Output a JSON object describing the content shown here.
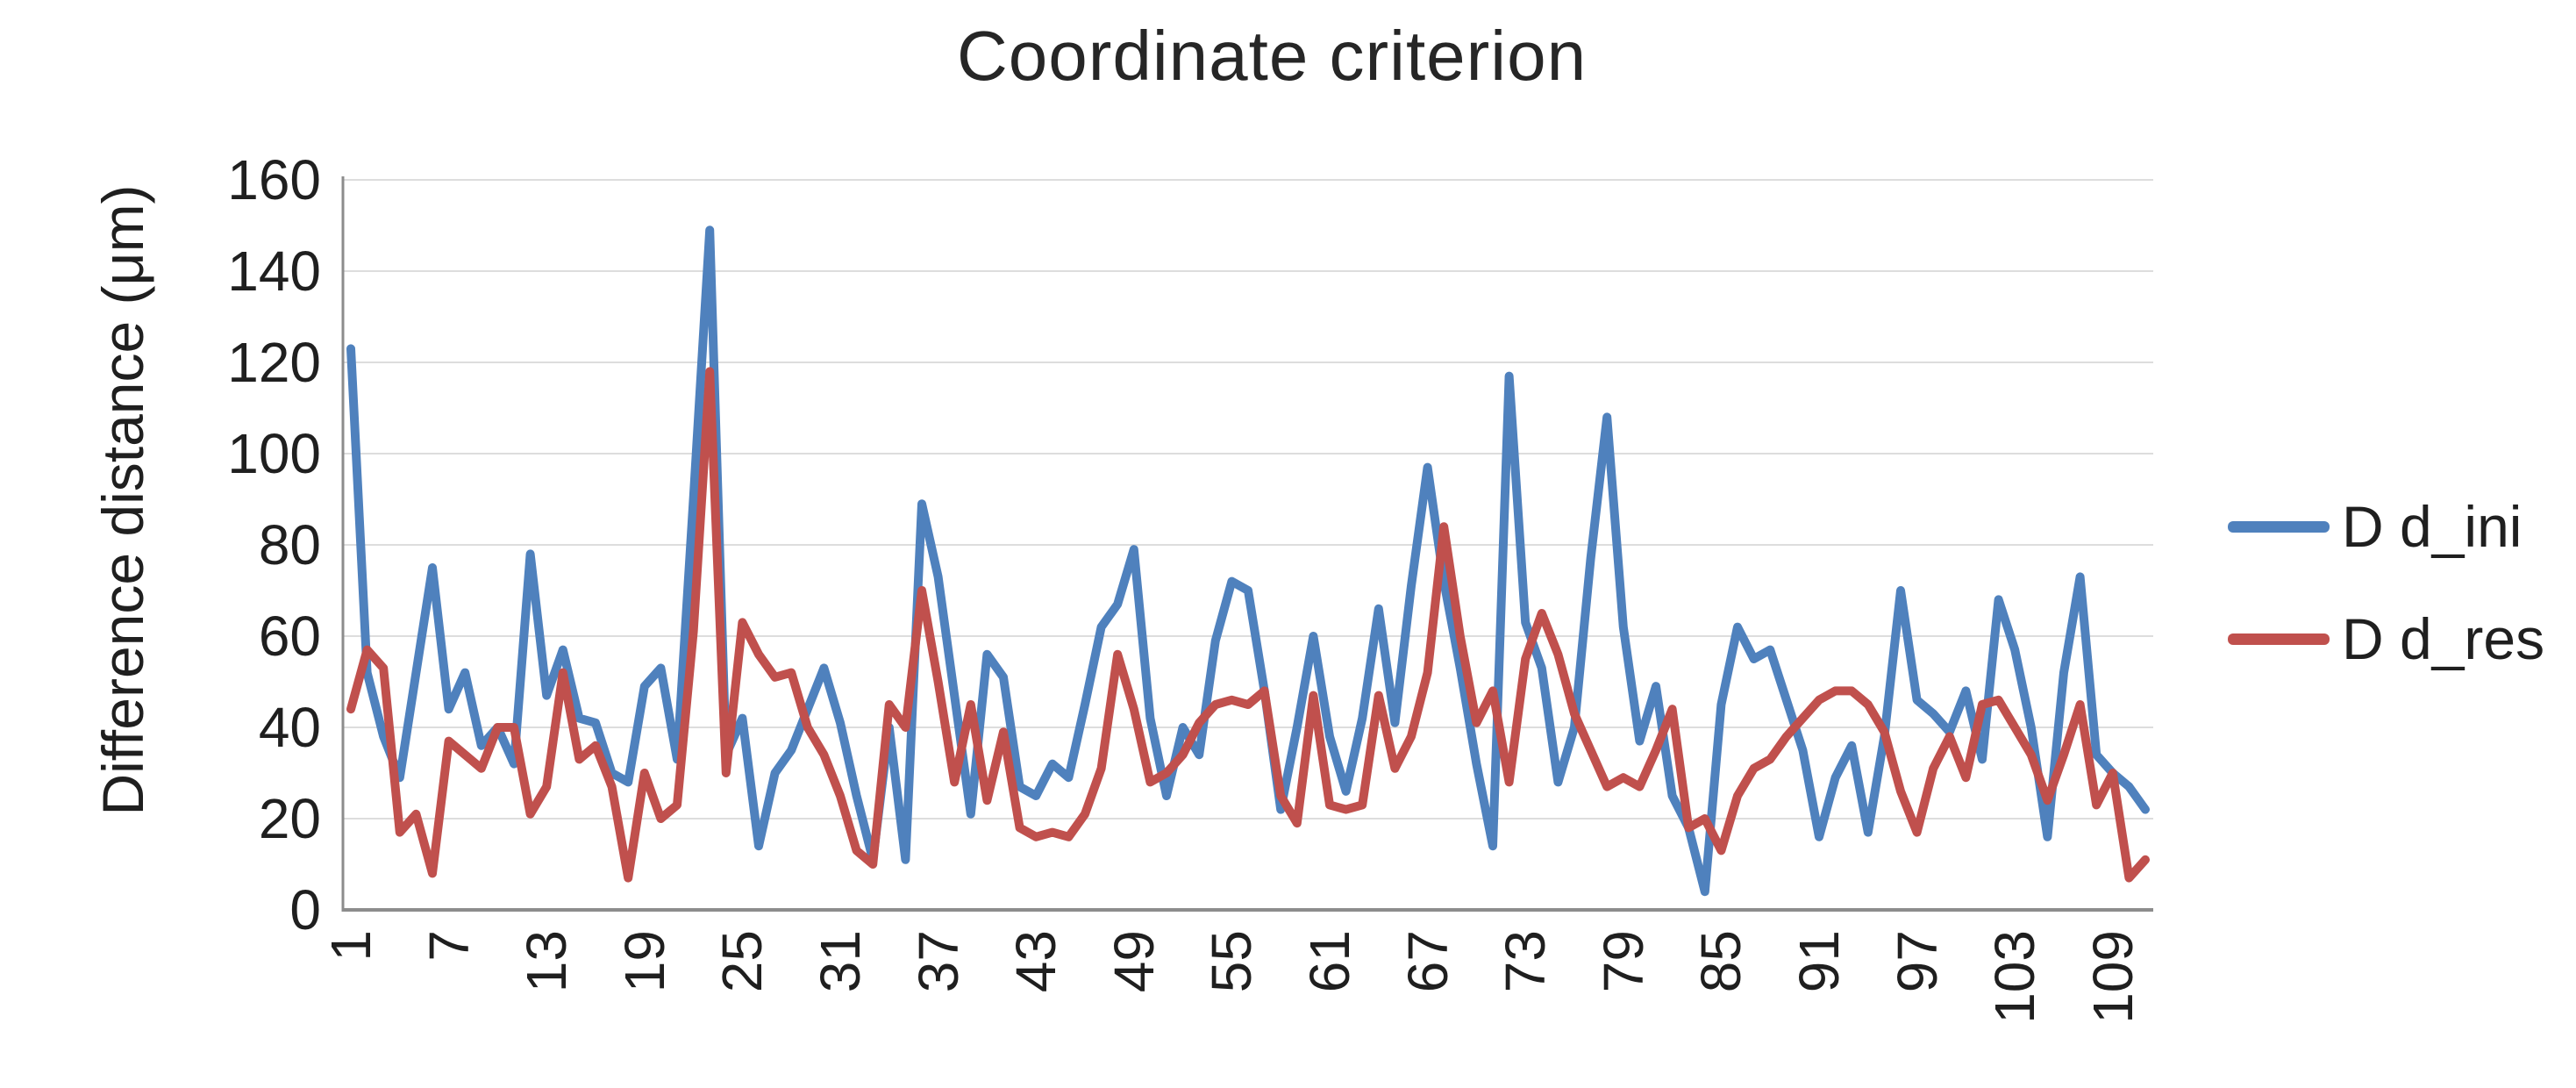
{
  "chart_data": {
    "type": "line",
    "title": "Coordinate criterion",
    "ylabel": "Difference distance (μm)",
    "xlabel": "",
    "ylim": [
      0,
      160
    ],
    "ytick_step": 20,
    "y_tick_labels": [
      "0",
      "20",
      "40",
      "60",
      "80",
      "100",
      "120",
      "140",
      "160"
    ],
    "x_tick_labels": [
      "1",
      "7",
      "13",
      "19",
      "25",
      "31",
      "37",
      "43",
      "49",
      "55",
      "61",
      "67",
      "73",
      "79",
      "85",
      "91",
      "97",
      "103",
      "109"
    ],
    "x_tick_interval": 6,
    "point_count": 111,
    "grid": "horizontal",
    "legend_position": "right",
    "series": [
      {
        "name": "D d_ini",
        "color": "#4F81BD",
        "values": [
          123,
          52,
          38,
          29,
          52,
          75,
          44,
          52,
          36,
          40,
          32,
          78,
          47,
          57,
          42,
          41,
          30,
          28,
          49,
          53,
          33,
          90,
          149,
          34,
          42,
          14,
          30,
          35,
          44,
          53,
          41,
          25,
          11,
          40,
          11,
          89,
          73,
          47,
          21,
          56,
          51,
          27,
          25,
          32,
          29,
          45,
          62,
          67,
          79,
          42,
          25,
          40,
          34,
          59,
          72,
          70,
          48,
          22,
          40,
          60,
          38,
          26,
          42,
          66,
          41,
          71,
          97,
          72,
          53,
          32,
          14,
          117,
          63,
          53,
          28,
          40,
          77,
          108,
          62,
          37,
          49,
          25,
          18,
          4,
          45,
          62,
          55,
          57,
          46,
          35,
          16,
          29,
          36,
          17,
          38,
          70,
          46,
          43,
          39,
          48,
          33,
          68,
          57,
          40,
          16,
          52,
          73,
          34,
          30,
          27,
          22
        ]
      },
      {
        "name": "D d_res",
        "color": "#C0504D",
        "values": [
          44,
          57,
          53,
          17,
          21,
          8,
          37,
          34,
          31,
          40,
          40,
          21,
          27,
          52,
          33,
          36,
          27,
          7,
          30,
          20,
          23,
          61,
          118,
          30,
          63,
          56,
          51,
          52,
          40,
          34,
          25,
          13,
          10,
          45,
          40,
          70,
          50,
          28,
          45,
          24,
          39,
          18,
          16,
          17,
          16,
          21,
          31,
          56,
          44,
          28,
          30,
          34,
          41,
          45,
          46,
          45,
          48,
          25,
          19,
          47,
          23,
          22,
          23,
          47,
          31,
          38,
          52,
          84,
          60,
          41,
          48,
          28,
          55,
          65,
          56,
          43,
          35,
          27,
          29,
          27,
          35,
          44,
          18,
          20,
          13,
          25,
          31,
          33,
          38,
          42,
          46,
          48,
          48,
          45,
          39,
          26,
          17,
          31,
          38,
          29,
          45,
          46,
          40,
          34,
          24,
          34,
          45,
          23,
          30,
          7,
          11
        ]
      }
    ],
    "style_colors": {
      "gridline": "#DDDDDD",
      "axis": "#8C8C8C",
      "text": "#1F1F1F"
    }
  }
}
